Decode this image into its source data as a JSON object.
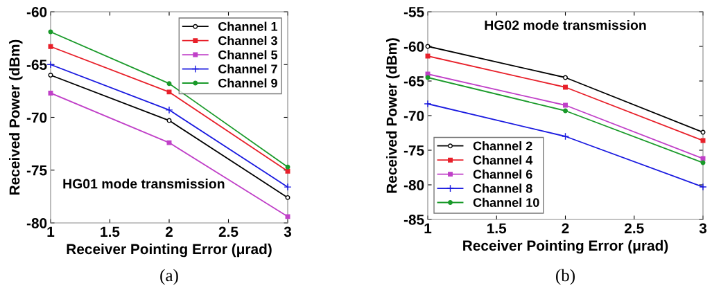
{
  "chart_data": [
    {
      "type": "line",
      "title": "HG01 mode transmission",
      "xlabel": "Receiver Pointing Error (μrad)",
      "ylabel": "Received Power (dBm)",
      "annotations": [
        "(a)"
      ],
      "x": [
        1,
        2,
        3
      ],
      "xlim": [
        1,
        3
      ],
      "xticks": [
        1,
        1.5,
        2,
        2.5,
        3
      ],
      "ylim": [
        -80,
        -60
      ],
      "yticks": [
        -80,
        -75,
        -70,
        -65,
        -60
      ],
      "grid": false,
      "legend": "top right",
      "line_style": "solid",
      "series": [
        {
          "name": "Channel 1",
          "color": "#000000",
          "marker": "circle",
          "values": [
            -66.0,
            -70.3,
            -77.6
          ]
        },
        {
          "name": "Channel 3",
          "color": "#e8202a",
          "marker": "square",
          "values": [
            -63.3,
            -67.6,
            -75.1
          ]
        },
        {
          "name": "Channel 5",
          "color": "#c040c8",
          "marker": "square",
          "values": [
            -67.7,
            -72.4,
            -79.4
          ]
        },
        {
          "name": "Channel 7",
          "color": "#1a1ae0",
          "marker": "cross",
          "values": [
            -65.0,
            -69.3,
            -76.6
          ]
        },
        {
          "name": "Channel 9",
          "color": "#1a9a2a",
          "marker": "circle",
          "values": [
            -61.9,
            -66.8,
            -74.7
          ]
        }
      ]
    },
    {
      "type": "line",
      "title": "HG02 mode transmission",
      "xlabel": "Receiver Pointing Error (μrad)",
      "ylabel": "Received Power (dBm)",
      "annotations": [
        "(b)"
      ],
      "x": [
        1,
        2,
        3
      ],
      "xlim": [
        1,
        3
      ],
      "xticks": [
        1,
        1.5,
        2,
        2.5,
        3
      ],
      "ylim": [
        -85,
        -55
      ],
      "yticks": [
        -85,
        -80,
        -75,
        -70,
        -65,
        -60,
        -55
      ],
      "grid": false,
      "legend": "bottom left",
      "line_style": "solid",
      "series": [
        {
          "name": "Channel 2",
          "color": "#000000",
          "marker": "circle",
          "values": [
            -60.0,
            -64.5,
            -72.4
          ]
        },
        {
          "name": "Channel 4",
          "color": "#e8202a",
          "marker": "square",
          "values": [
            -61.4,
            -65.9,
            -73.6
          ]
        },
        {
          "name": "Channel 6",
          "color": "#c040c8",
          "marker": "square",
          "values": [
            -64.0,
            -68.5,
            -76.2
          ]
        },
        {
          "name": "Channel 8",
          "color": "#1a1ae0",
          "marker": "cross",
          "values": [
            -68.3,
            -73.0,
            -80.3
          ]
        },
        {
          "name": "Channel 10",
          "color": "#1a9a2a",
          "marker": "circle",
          "values": [
            -64.5,
            -69.3,
            -76.8
          ]
        }
      ]
    }
  ]
}
